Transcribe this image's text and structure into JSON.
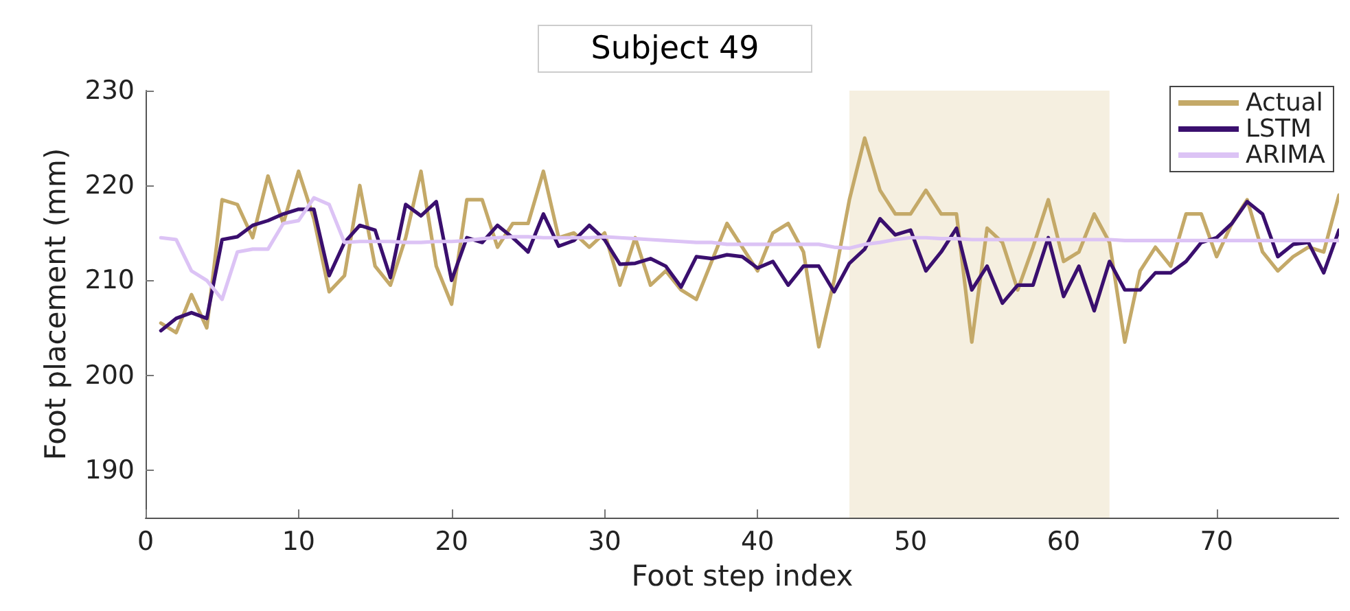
{
  "chart_data": {
    "type": "line",
    "title": "Subject 49",
    "xlabel": "Foot step index",
    "ylabel": "Foot placement (mm)",
    "x": [
      1,
      2,
      3,
      4,
      5,
      6,
      7,
      8,
      9,
      10,
      11,
      12,
      13,
      14,
      15,
      16,
      17,
      18,
      19,
      20,
      21,
      22,
      23,
      24,
      25,
      26,
      27,
      28,
      29,
      30,
      31,
      32,
      33,
      34,
      35,
      36,
      37,
      38,
      39,
      40,
      41,
      42,
      43,
      44,
      45,
      46,
      47,
      48,
      49,
      50,
      51,
      52,
      53,
      54,
      55,
      56,
      57,
      58,
      59,
      60,
      61,
      62,
      63,
      64,
      65,
      66,
      67,
      68,
      69,
      70,
      71,
      72,
      73,
      74,
      75,
      76,
      77,
      78
    ],
    "series": [
      {
        "name": "Actual",
        "color": "#c4a968",
        "values": [
          205.5,
          204.5,
          208.5,
          205,
          218.5,
          218,
          214.5,
          221,
          216,
          221.5,
          216.5,
          208.8,
          210.5,
          220,
          211.5,
          209.5,
          214.5,
          221.5,
          211.5,
          207.5,
          218.5,
          218.5,
          213.5,
          216,
          216,
          221.5,
          214.5,
          215,
          213.5,
          215,
          209.5,
          214.5,
          209.5,
          211,
          209,
          208,
          212,
          216,
          213.5,
          211,
          215,
          216,
          213,
          203,
          210,
          218.5,
          225,
          219.5,
          217,
          217,
          219.5,
          217,
          217,
          203.5,
          215.5,
          214,
          209,
          213.5,
          218.5,
          212,
          213,
          217,
          214,
          203.5,
          211,
          213.5,
          211.5,
          217,
          217,
          212.5,
          216,
          218.5,
          213,
          211,
          212.5,
          213.5,
          213,
          219
        ]
      },
      {
        "name": "LSTM",
        "color": "#3a0f6e",
        "values": [
          204.7,
          206,
          206.6,
          206,
          214.3,
          214.6,
          215.8,
          216.3,
          217,
          217.5,
          217.5,
          210.5,
          214,
          215.8,
          215.3,
          210.3,
          218,
          216.8,
          218.3,
          210,
          214.5,
          214,
          215.8,
          214.5,
          213,
          217,
          213.6,
          214.2,
          215.8,
          214.3,
          211.7,
          211.8,
          212.3,
          211.5,
          209.3,
          212.5,
          212.3,
          212.7,
          212.5,
          211.3,
          212,
          209.5,
          211.5,
          211.5,
          208.8,
          211.8,
          213.3,
          216.5,
          214.8,
          215.3,
          211,
          213,
          215.5,
          209,
          211.5,
          207.6,
          209.5,
          209.5,
          214.5,
          208.3,
          211.5,
          206.8,
          212,
          209,
          209,
          210.8,
          210.8,
          212,
          214,
          214.5,
          216,
          218.3,
          217,
          212.5,
          213.8,
          214,
          210.8,
          215.3
        ]
      },
      {
        "name": "ARIMA",
        "color": "#dcc3f5",
        "values": [
          214.5,
          214.3,
          211,
          210,
          208,
          213,
          213.3,
          213.3,
          216,
          216.3,
          218.7,
          218,
          214,
          214.1,
          214.1,
          214.1,
          214,
          214,
          214.1,
          214.1,
          214.2,
          214.4,
          214.5,
          214.6,
          214.6,
          214.5,
          214.5,
          214.5,
          214.5,
          214.6,
          214.5,
          214.4,
          214.3,
          214.2,
          214.1,
          214,
          214,
          213.8,
          213.8,
          213.8,
          213.8,
          213.8,
          213.8,
          213.8,
          213.5,
          213.4,
          213.8,
          214,
          214.3,
          214.5,
          214.5,
          214.4,
          214.4,
          214.3,
          214.3,
          214.3,
          214.3,
          214.3,
          214.3,
          214.3,
          214.3,
          214.3,
          214.3,
          214.2,
          214.2,
          214.2,
          214.2,
          214.2,
          214.2,
          214.2,
          214.2,
          214.2,
          214.2,
          214.2,
          214.2,
          214.2,
          214.2,
          214.2
        ]
      }
    ],
    "xlim": [
      0,
      78
    ],
    "xticks": [
      0,
      10,
      20,
      30,
      40,
      50,
      60,
      70
    ],
    "ylim": [
      185,
      230
    ],
    "yticks": [
      190,
      200,
      210,
      220,
      230
    ],
    "bands": [
      {
        "axis": "x",
        "from": 46,
        "to": 63,
        "color": "#f5efe0"
      }
    ],
    "grid": false,
    "legend": "top right",
    "marker": "none",
    "line_style": "solid"
  }
}
